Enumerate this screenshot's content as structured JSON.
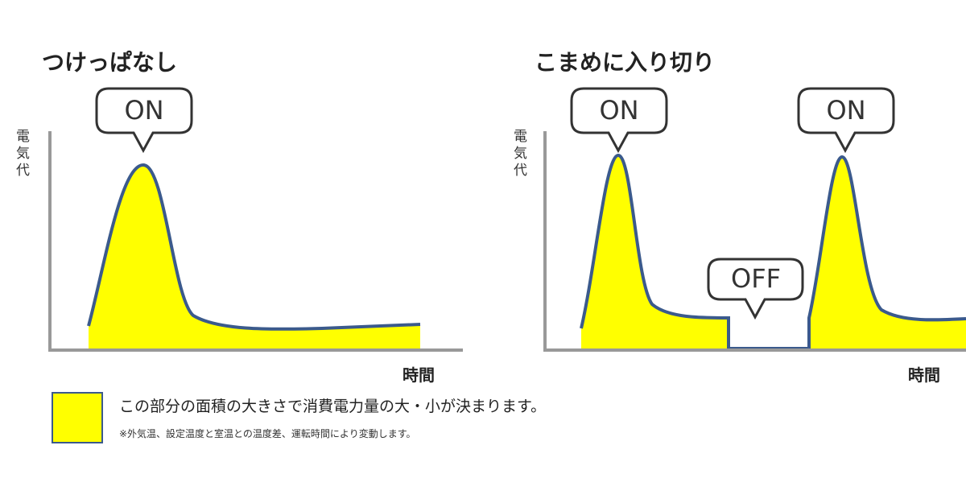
{
  "panels": [
    {
      "title": "つけっぱなし",
      "bubbles": [
        "ON"
      ],
      "y_label": "電気代",
      "x_label": "時間"
    },
    {
      "title": "こまめに入り切り",
      "bubbles": [
        "ON",
        "OFF",
        "ON"
      ],
      "y_label": "電気代",
      "x_label": "時間"
    }
  ],
  "legend": {
    "text": "この部分の面積の大きさで消費電力量の大・小が決まります。",
    "note": "※外気温、設定温度と室温との温度差、運転時間により変動します。"
  }
}
